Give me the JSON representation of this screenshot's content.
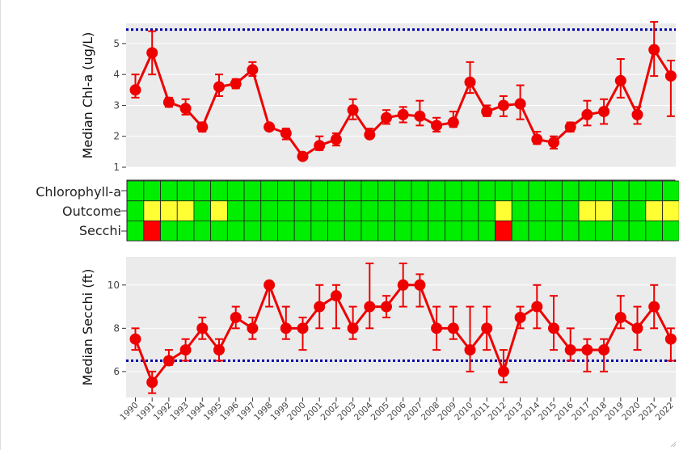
{
  "chart_data": [
    {
      "type": "line",
      "ylabel": "Median Chl-a (ug/L)",
      "ylim": [
        1,
        5.65
      ],
      "yticks": [
        1,
        2,
        3,
        4,
        5
      ],
      "threshold": 5.45,
      "x": [
        "1990",
        "1991",
        "1992",
        "1993",
        "1994",
        "1995",
        "1996",
        "1997",
        "1998",
        "1999",
        "2000",
        "2001",
        "2002",
        "2003",
        "2004",
        "2005",
        "2006",
        "2007",
        "2008",
        "2009",
        "2010",
        "2011",
        "2012",
        "2013",
        "2014",
        "2015",
        "2016",
        "2017",
        "2018",
        "2019",
        "2020",
        "2021",
        "2022"
      ],
      "series": [
        {
          "values": [
            3.5,
            4.7,
            3.1,
            2.9,
            2.3,
            3.6,
            3.7,
            4.15,
            2.3,
            2.1,
            1.35,
            1.7,
            1.9,
            2.85,
            2.05,
            2.6,
            2.7,
            2.65,
            2.35,
            2.45,
            3.75,
            2.8,
            3.0,
            3.05,
            1.9,
            1.8,
            2.3,
            2.7,
            2.8,
            3.8,
            2.7,
            4.8,
            3.95
          ],
          "low": [
            3.25,
            4.0,
            2.95,
            2.7,
            2.15,
            3.3,
            3.55,
            3.95,
            2.2,
            1.9,
            1.25,
            1.55,
            1.7,
            2.55,
            1.95,
            2.4,
            2.45,
            2.35,
            2.15,
            2.3,
            3.4,
            2.65,
            2.65,
            2.55,
            1.75,
            1.6,
            2.15,
            2.35,
            2.4,
            3.25,
            2.4,
            3.95,
            2.65
          ],
          "high": [
            4.0,
            5.4,
            3.25,
            3.2,
            2.45,
            4.0,
            3.85,
            4.4,
            2.4,
            2.25,
            1.45,
            2.0,
            2.1,
            3.2,
            2.25,
            2.85,
            2.95,
            3.15,
            2.6,
            2.8,
            4.4,
            3.0,
            3.3,
            3.65,
            2.15,
            2.0,
            2.45,
            3.15,
            3.2,
            4.5,
            2.95,
            5.7,
            4.45
          ]
        }
      ],
      "colors": {
        "series": "#ee0000",
        "threshold": "#0000aa",
        "panel": "#ebebeb"
      }
    },
    {
      "type": "heatmap",
      "rows": [
        "Chlorophyll-a",
        "Outcome",
        "Secchi"
      ],
      "columns": [
        "1990",
        "1991",
        "1992",
        "1993",
        "1994",
        "1995",
        "1996",
        "1997",
        "1998",
        "1999",
        "2000",
        "2001",
        "2002",
        "2003",
        "2004",
        "2005",
        "2006",
        "2007",
        "2008",
        "2009",
        "2010",
        "2011",
        "2012",
        "2013",
        "2014",
        "2015",
        "2016",
        "2017",
        "2018",
        "2019",
        "2020",
        "2021",
        "2022"
      ],
      "cells": [
        [
          "G",
          "G",
          "G",
          "G",
          "G",
          "G",
          "G",
          "G",
          "G",
          "G",
          "G",
          "G",
          "G",
          "G",
          "G",
          "G",
          "G",
          "G",
          "G",
          "G",
          "G",
          "G",
          "G",
          "G",
          "G",
          "G",
          "G",
          "G",
          "G",
          "G",
          "G",
          "G",
          "G"
        ],
        [
          "G",
          "Y",
          "Y",
          "Y",
          "G",
          "Y",
          "G",
          "G",
          "G",
          "G",
          "G",
          "G",
          "G",
          "G",
          "G",
          "G",
          "G",
          "G",
          "G",
          "G",
          "G",
          "G",
          "Y",
          "G",
          "G",
          "G",
          "G",
          "Y",
          "Y",
          "G",
          "G",
          "Y",
          "Y"
        ],
        [
          "G",
          "R",
          "G",
          "G",
          "G",
          "G",
          "G",
          "G",
          "G",
          "G",
          "G",
          "G",
          "G",
          "G",
          "G",
          "G",
          "G",
          "G",
          "G",
          "G",
          "G",
          "G",
          "R",
          "G",
          "G",
          "G",
          "G",
          "G",
          "G",
          "G",
          "G",
          "G",
          "G"
        ]
      ],
      "colors": {
        "G": "#00ee00",
        "Y": "#ffff33",
        "R": "#ff0000"
      }
    },
    {
      "type": "line",
      "ylabel": "Median Secchi (ft)",
      "ylim": [
        4.8,
        11.3
      ],
      "yticks": [
        6,
        8,
        10
      ],
      "threshold": 6.5,
      "x": [
        "1990",
        "1991",
        "1992",
        "1993",
        "1994",
        "1995",
        "1996",
        "1997",
        "1998",
        "1999",
        "2000",
        "2001",
        "2002",
        "2003",
        "2004",
        "2005",
        "2006",
        "2007",
        "2008",
        "2009",
        "2010",
        "2011",
        "2012",
        "2013",
        "2014",
        "2015",
        "2016",
        "2017",
        "2018",
        "2019",
        "2020",
        "2021",
        "2022"
      ],
      "series": [
        {
          "values": [
            7.5,
            5.5,
            6.5,
            7.0,
            8.0,
            7.0,
            8.5,
            8.0,
            10.0,
            8.0,
            8.0,
            9.0,
            9.5,
            8.0,
            9.0,
            9.0,
            10.0,
            10.0,
            8.0,
            8.0,
            7.0,
            8.0,
            6.0,
            8.5,
            9.0,
            8.0,
            7.0,
            7.0,
            7.0,
            8.5,
            8.0,
            9.0,
            7.5
          ],
          "low": [
            7.0,
            5.0,
            6.3,
            6.5,
            7.5,
            6.5,
            8.0,
            7.5,
            9.0,
            7.5,
            7.0,
            8.0,
            8.0,
            7.5,
            8.0,
            8.5,
            9.0,
            9.0,
            7.0,
            7.5,
            6.0,
            7.0,
            5.5,
            8.0,
            8.0,
            7.0,
            6.5,
            6.0,
            6.0,
            8.0,
            7.0,
            8.0,
            6.5
          ],
          "high": [
            8.0,
            6.0,
            7.0,
            7.5,
            8.5,
            7.5,
            9.0,
            8.5,
            10.0,
            9.0,
            8.5,
            10.0,
            10.0,
            9.0,
            11.0,
            9.5,
            11.0,
            10.5,
            9.0,
            9.0,
            9.0,
            9.0,
            7.0,
            9.0,
            10.0,
            9.5,
            8.0,
            7.5,
            7.5,
            9.5,
            9.0,
            10.0,
            8.0
          ]
        }
      ],
      "colors": {
        "series": "#ee0000",
        "threshold": "#0000aa",
        "panel": "#ebebeb"
      }
    }
  ]
}
